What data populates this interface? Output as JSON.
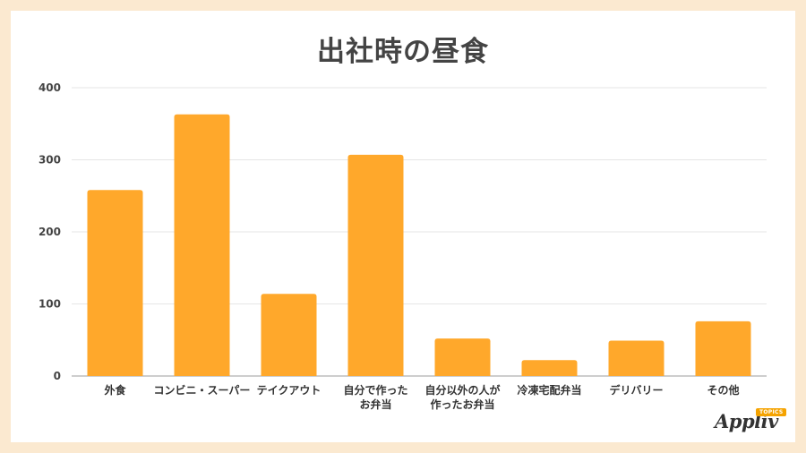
{
  "chart_data": {
    "type": "bar",
    "title": "出社時の昼食",
    "categories": [
      [
        "外食"
      ],
      [
        "コンビニ・スーパー"
      ],
      [
        "テイクアウト"
      ],
      [
        "自分で作った",
        "お弁当"
      ],
      [
        "自分以外の人が",
        "作ったお弁当"
      ],
      [
        "冷凍宅配弁当"
      ],
      [
        "デリバリー"
      ],
      [
        "その他"
      ]
    ],
    "values": [
      258,
      363,
      114,
      307,
      52,
      22,
      49,
      76
    ],
    "ylim": [
      0,
      400
    ],
    "yticks": [
      0,
      100,
      200,
      300,
      400
    ],
    "grid": true,
    "bar_color": "#ffa82b"
  },
  "logo": {
    "text": "Appliv",
    "badge": "TOPICS"
  }
}
